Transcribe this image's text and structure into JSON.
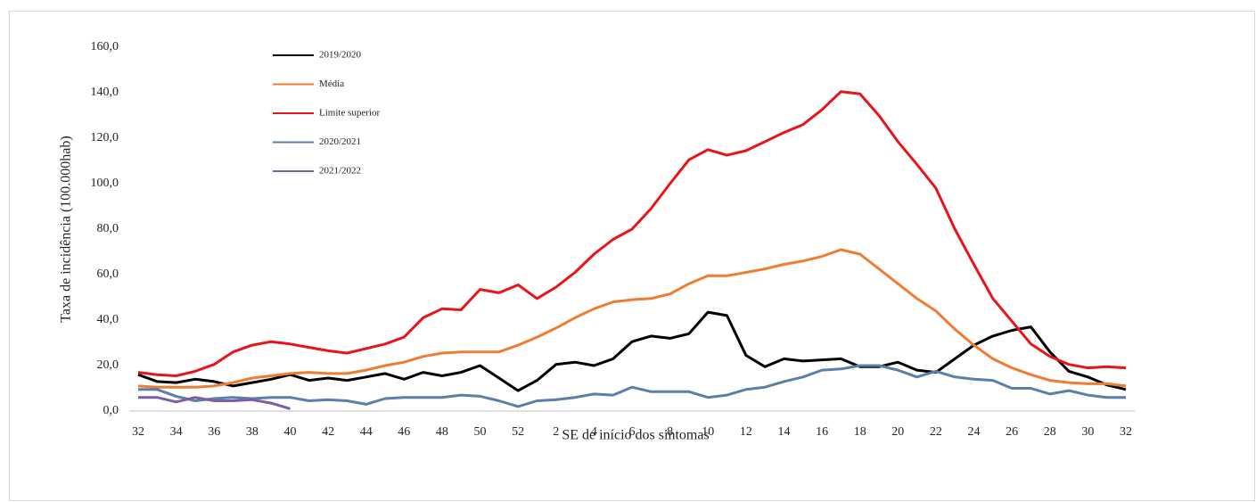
{
  "chart_data": {
    "type": "line",
    "x_label": "SE de início dos sintomas",
    "y_label": "Taxa de incidência (100.000hab)",
    "categories": [
      32,
      null,
      34,
      null,
      36,
      null,
      38,
      null,
      40,
      null,
      42,
      null,
      44,
      null,
      46,
      null,
      48,
      null,
      50,
      null,
      52,
      null,
      2,
      null,
      4,
      null,
      6,
      null,
      8,
      null,
      10,
      null,
      12,
      null,
      14,
      null,
      16,
      null,
      18,
      null,
      20,
      null,
      22,
      null,
      24,
      null,
      26,
      null,
      28,
      null,
      30,
      null,
      32
    ],
    "ylim": [
      0,
      160
    ],
    "yticks": [
      {
        "value": 0,
        "label": "0,0"
      },
      {
        "value": 20,
        "label": "20,0"
      },
      {
        "value": 40,
        "label": "40,0"
      },
      {
        "value": 60,
        "label": "60,0"
      },
      {
        "value": 80,
        "label": "80,0"
      },
      {
        "value": 100,
        "label": "100,0"
      },
      {
        "value": 120,
        "label": "120,0"
      },
      {
        "value": 140,
        "label": "140,0"
      },
      {
        "value": 160,
        "label": "160,0"
      }
    ],
    "legend": "top-left",
    "series": [
      {
        "name": "2019/2020",
        "color": "#000000",
        "values": [
          16,
          13,
          12.5,
          14,
          13,
          11,
          12.5,
          14,
          16,
          13.5,
          14.5,
          13.5,
          15,
          16.5,
          14,
          17,
          15.5,
          17,
          20,
          14.5,
          9,
          13.5,
          20.5,
          21.5,
          20,
          23,
          30.5,
          33,
          32,
          34,
          43.5,
          42,
          24.5,
          19.5,
          23,
          22,
          22.5,
          23,
          19.5,
          19.5,
          21.5,
          18,
          17,
          23,
          29,
          33,
          35.5,
          37,
          26,
          17.5,
          15,
          11.5,
          9.5
        ]
      },
      {
        "name": "Média",
        "color": "#ed7d31",
        "values": [
          11,
          10.5,
          10.5,
          10.5,
          11,
          12.5,
          14.5,
          15.5,
          16.5,
          17,
          16.5,
          16.5,
          18,
          20,
          21.5,
          24,
          25.5,
          26,
          26,
          26,
          29,
          32.5,
          36.5,
          41,
          45,
          48,
          49,
          49.5,
          51.5,
          56,
          59.5,
          59.5,
          61,
          62.5,
          64.5,
          66,
          68,
          71,
          69,
          62.5,
          56,
          49.5,
          44,
          36,
          29,
          23,
          19,
          16,
          13.5,
          12.5,
          12,
          12,
          11
        ]
      },
      {
        "name": "Limite superior",
        "color": "#e8141b",
        "values": [
          17,
          16,
          15.5,
          17.5,
          20.5,
          26,
          29,
          30.5,
          29.5,
          28,
          26.5,
          25.5,
          27.5,
          29.5,
          32.5,
          41,
          45,
          44.5,
          53.5,
          52,
          55.5,
          49.5,
          54.5,
          61,
          69,
          75.5,
          80,
          89,
          100,
          110.5,
          115,
          112.5,
          114.5,
          118.5,
          122.5,
          126,
          132.5,
          140.5,
          139.5,
          130,
          118.5,
          108.5,
          98,
          80,
          64.5,
          49.5,
          39.5,
          29.5,
          24,
          20.5,
          19,
          19.5,
          19
        ]
      },
      {
        "name": "2020/2021",
        "color": "#5b7fa8",
        "values": [
          9.5,
          9.5,
          6.5,
          4.5,
          5.5,
          6,
          5.5,
          6,
          6,
          4.5,
          5,
          4.5,
          3,
          5.5,
          6,
          6,
          6,
          7,
          6.5,
          4.5,
          2,
          4.5,
          5,
          6,
          7.5,
          7,
          10.5,
          8.5,
          8.5,
          8.5,
          6,
          7,
          9.5,
          10.5,
          13,
          15,
          18,
          18.5,
          20,
          20,
          18,
          15,
          17.5,
          15,
          14,
          13.5,
          10,
          10,
          7.5,
          9,
          7,
          6,
          6
        ]
      },
      {
        "name": "2021/2022",
        "color": "#7b5fa6",
        "values": [
          6,
          6,
          4,
          6,
          4.5,
          4.5,
          5,
          3.5,
          1,
          null,
          null,
          null,
          null,
          null,
          null,
          null,
          null,
          null,
          null,
          null,
          null,
          null,
          null,
          null,
          null,
          null,
          null,
          null,
          null,
          null,
          null,
          null,
          null,
          null,
          null,
          null,
          null,
          null,
          null,
          null,
          null,
          null,
          null,
          null,
          null,
          null,
          null,
          null,
          null,
          null,
          null,
          null,
          null
        ]
      }
    ]
  }
}
